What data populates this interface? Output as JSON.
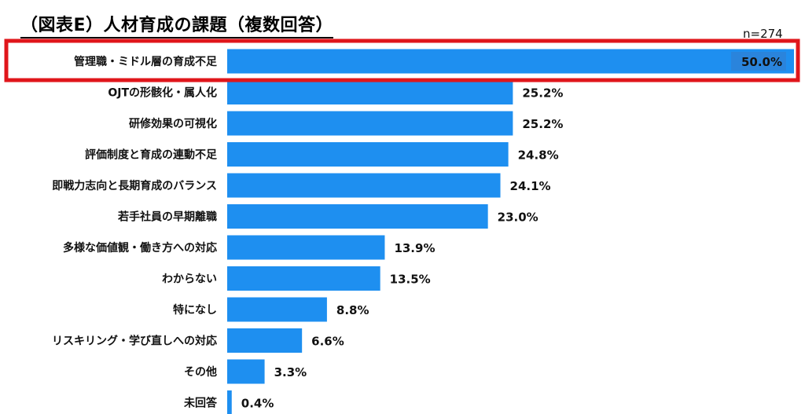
{
  "page": {
    "title": "（図表E）人材育成の課題（複数回答）",
    "sample_size": "n=274"
  },
  "colors": {
    "bar": "#1e8ff0",
    "highlight_border": "#e0161b",
    "top_label_box": "#2a84dc"
  },
  "chart_data": {
    "type": "bar",
    "orientation": "horizontal",
    "title": "（図表E）人材育成の課題（複数回答）",
    "annotation": "n=274",
    "unit": "%",
    "xlim": [
      0,
      50
    ],
    "highlighted_category": "管理職・ミドル層の育成不足",
    "categories": [
      "管理職・ミドル層の育成不足",
      "OJTの形骸化・属人化",
      "研修効果の可視化",
      "評価制度と育成の連動不足",
      "即戦力志向と長期育成のバランス",
      "若手社員の早期離職",
      "多様な価値観・働き方への対応",
      "わからない",
      "特になし",
      "リスキリング・学び直しへの対応",
      "その他",
      "未回答"
    ],
    "values": [
      50.0,
      25.2,
      25.2,
      24.8,
      24.1,
      23.0,
      13.9,
      13.5,
      8.8,
      6.6,
      3.3,
      0.4
    ],
    "value_labels": [
      "50.0%",
      "25.2%",
      "25.2%",
      "24.8%",
      "24.1%",
      "23.0%",
      "13.9%",
      "13.5%",
      "8.8%",
      "6.6%",
      "3.3%",
      "0.4%"
    ]
  }
}
